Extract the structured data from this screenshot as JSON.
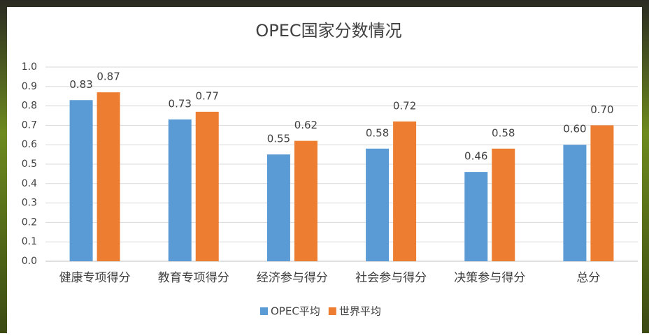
{
  "chart_data": {
    "type": "bar",
    "title": "OPEC国家分数情况",
    "categories": [
      "健康专项得分",
      "教育专项得分",
      "经济参与得分",
      "社会参与得分",
      "决策参与得分",
      "总分"
    ],
    "series": [
      {
        "name": "OPEC平均",
        "color": "#5b9bd5",
        "values": [
          0.83,
          0.73,
          0.55,
          0.58,
          0.46,
          0.6
        ],
        "value_labels": [
          "0.83",
          "0.73",
          "0.55",
          "0.58",
          "0.46",
          "0.60"
        ]
      },
      {
        "name": "世界平均",
        "color": "#ed7d31",
        "values": [
          0.87,
          0.77,
          0.62,
          0.72,
          0.58,
          0.7
        ],
        "value_labels": [
          "0.87",
          "0.77",
          "0.62",
          "0.72",
          "0.58",
          "0.70"
        ]
      }
    ],
    "ylim": [
      0,
      1
    ],
    "yticks": [
      {
        "value": 0,
        "label": "0.0"
      },
      0.1,
      0.2,
      0.3,
      0.4,
      0.5,
      0.6,
      0.7,
      0.8,
      0.9,
      {
        "value": 1,
        "label": "1.0"
      }
    ],
    "grid": true,
    "legend": "bottom"
  }
}
